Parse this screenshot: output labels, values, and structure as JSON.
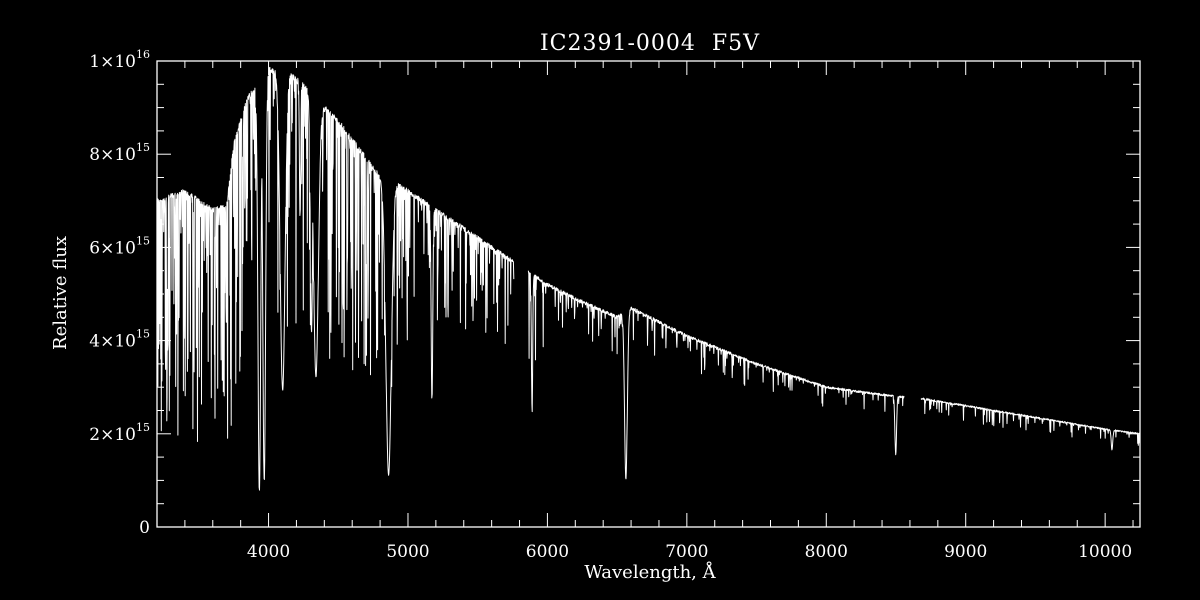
{
  "chart_data": {
    "type": "line",
    "title": "IC2391-0004  F5V",
    "xlabel": "Wavelength, Å",
    "ylabel": "Relative flux",
    "xlim": [
      3200,
      10250
    ],
    "ylim": [
      0,
      1e+16
    ],
    "x_ticks": [
      {
        "value": 4000,
        "label": "4000"
      },
      {
        "value": 5000,
        "label": "5000"
      },
      {
        "value": 6000,
        "label": "6000"
      },
      {
        "value": 7000,
        "label": "7000"
      },
      {
        "value": 8000,
        "label": "8000"
      },
      {
        "value": 9000,
        "label": "9000"
      },
      {
        "value": 10000,
        "label": "10000"
      }
    ],
    "x_minor_step": 200,
    "y_ticks": [
      {
        "value": 0,
        "mant": "0",
        "exp": ""
      },
      {
        "value": 2000000000000000.0,
        "mant": "2×10",
        "exp": "15"
      },
      {
        "value": 4000000000000000.0,
        "mant": "4×10",
        "exp": "15"
      },
      {
        "value": 6000000000000000.0,
        "mant": "6×10",
        "exp": "15"
      },
      {
        "value": 8000000000000000.0,
        "mant": "8×10",
        "exp": "15"
      },
      {
        "value": 1e+16,
        "mant": "1×10",
        "exp": "16"
      }
    ],
    "y_minor_step": 500000000000000.0,
    "grid": false,
    "colors": {
      "background": "#000000",
      "foreground": "#ffffff"
    },
    "series": [
      {
        "continuum": [
          [
            3200,
            7000000000000000.0
          ],
          [
            3400,
            7200000000000000.0
          ],
          [
            3600,
            6800000000000000.0
          ],
          [
            3700,
            6900000000000000.0
          ],
          [
            3750,
            8200000000000000.0
          ],
          [
            3850,
            9200000000000000.0
          ],
          [
            3950,
            9600000000000000.0
          ],
          [
            4000,
            9800000000000000.0
          ],
          [
            4100,
            9800000000000000.0
          ],
          [
            4200,
            9600000000000000.0
          ],
          [
            4300,
            9300000000000000.0
          ],
          [
            4400,
            9000000000000000.0
          ],
          [
            4500,
            8700000000000000.0
          ],
          [
            4600,
            8300000000000000.0
          ],
          [
            4700,
            7900000000000000.0
          ],
          [
            4800,
            7500000000000000.0
          ],
          [
            4900,
            7400000000000000.0
          ],
          [
            5000,
            7200000000000000.0
          ],
          [
            5200,
            6800000000000000.0
          ],
          [
            5400,
            6400000000000000.0
          ],
          [
            5600,
            6000000000000000.0
          ],
          [
            5800,
            5600000000000000.0
          ],
          [
            6000,
            5200000000000000.0
          ],
          [
            6200,
            4900000000000000.0
          ],
          [
            6500,
            4500000000000000.0
          ],
          [
            6600,
            4700000000000000.0
          ],
          [
            6800,
            4400000000000000.0
          ],
          [
            7000,
            4100000000000000.0
          ],
          [
            7500,
            3500000000000000.0
          ],
          [
            8000,
            3000000000000000.0
          ],
          [
            8500,
            2800000000000000.0
          ],
          [
            8700,
            2750000000000000.0
          ],
          [
            9000,
            2600000000000000.0
          ],
          [
            9500,
            2350000000000000.0
          ],
          [
            10000,
            2100000000000000.0
          ],
          [
            10250,
            2000000000000000.0
          ]
        ],
        "absorption_lines": [
          {
            "x": 3934,
            "depth": 0.92,
            "width": 14
          },
          {
            "x": 3969,
            "depth": 0.9,
            "width": 14
          },
          {
            "x": 4101,
            "depth": 0.7,
            "width": 25
          },
          {
            "x": 4226,
            "depth": 0.3,
            "width": 6
          },
          {
            "x": 4308,
            "depth": 0.55,
            "width": 12
          },
          {
            "x": 4340,
            "depth": 0.65,
            "width": 25
          },
          {
            "x": 4861,
            "depth": 0.85,
            "width": 28
          },
          {
            "x": 5172,
            "depth": 0.6,
            "width": 8
          },
          {
            "x": 5890,
            "depth": 0.55,
            "width": 6
          },
          {
            "x": 6563,
            "depth": 0.78,
            "width": 14
          },
          {
            "x": 8498,
            "depth": 0.45,
            "width": 8
          },
          {
            "x": 10049,
            "depth": 0.2,
            "width": 8
          }
        ],
        "gaps": [
          [
            5760,
            5860
          ],
          [
            8560,
            8680
          ]
        ]
      }
    ]
  }
}
